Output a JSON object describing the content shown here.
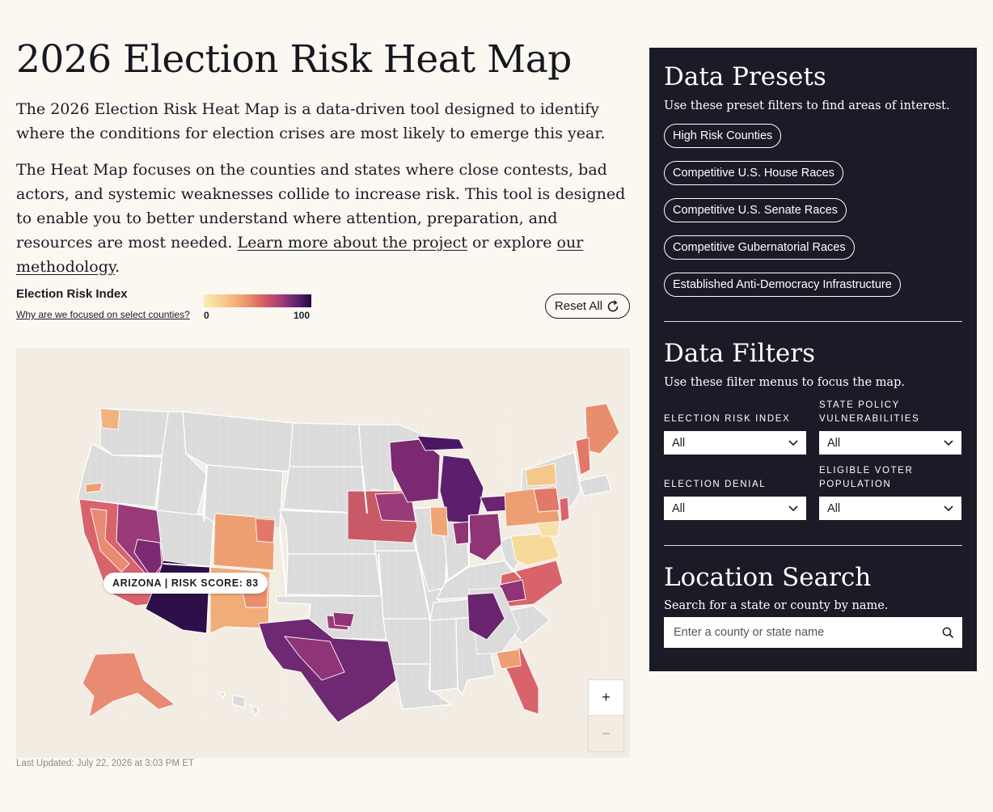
{
  "page": {
    "title": "2026 Election Risk Heat Map",
    "intro_1": "The 2026 Election Risk Heat Map is a data-driven tool designed to identify where the conditions for election crises are most likely to emerge this year.",
    "intro_2_start": "The Heat Map focuses on the counties and states where close contests, bad actors, and systemic weaknesses collide to increase risk. This tool is designed to enable you to better understand where attention, preparation, and resources are most needed. ",
    "link_project": "Learn more about the project",
    "intro_2_mid": " or explore ",
    "link_methodology": "our methodology",
    "intro_2_end": "."
  },
  "legend": {
    "title": "Election Risk Index",
    "link": "Why are we focused on select counties?",
    "min": "0",
    "max": "100",
    "colors": [
      "#fbedb5",
      "#f7c88a",
      "#ef9a6d",
      "#d95f62",
      "#a23d79",
      "#5b1f6e",
      "#1f0b3b"
    ]
  },
  "reset": {
    "label": "Reset All",
    "icon": "refresh-icon"
  },
  "map": {
    "tooltip": "ARIZONA | RISK SCORE: 83",
    "zoom_in": "+",
    "zoom_out": "−",
    "colors": {
      "background": "#f2ece3",
      "land_unscored": "#dcdbdb",
      "very_low": "#f7d99a",
      "low": "#f1a673",
      "medium": "#e37a67",
      "elevated": "#cf5a67",
      "high": "#8e3477",
      "very_high": "#5d1f6d",
      "extreme": "#2a0d47"
    },
    "states": [
      {
        "name": "Arizona",
        "risk": 83
      },
      {
        "name": "Nevada"
      },
      {
        "name": "California"
      },
      {
        "name": "Texas"
      },
      {
        "name": "Georgia"
      },
      {
        "name": "Michigan"
      },
      {
        "name": "Wisconsin"
      },
      {
        "name": "Iowa"
      },
      {
        "name": "Colorado"
      },
      {
        "name": "New Mexico"
      },
      {
        "name": "North Carolina"
      },
      {
        "name": "Pennsylvania"
      },
      {
        "name": "Florida"
      },
      {
        "name": "Maine"
      },
      {
        "name": "Alaska"
      },
      {
        "name": "Washington"
      },
      {
        "name": "Oregon"
      },
      {
        "name": "Ohio"
      },
      {
        "name": "Virginia"
      },
      {
        "name": "New Hampshire"
      }
    ]
  },
  "updated": "Last Updated: July 22, 2026 at 3:03 PM ET",
  "panel": {
    "presets_title": "Data Presets",
    "presets_sub": "Use these preset filters to find areas of interest.",
    "presets": [
      "High Risk Counties",
      "Competitive U.S. House Races",
      "Competitive U.S. Senate Races",
      "Competitive Gubernatorial Races",
      "Established Anti-Democracy Infrastructure"
    ],
    "filters_title": "Data Filters",
    "filters_sub": "Use these filter menus to focus the map.",
    "filters": [
      {
        "label": "ELECTION RISK INDEX",
        "value": "All"
      },
      {
        "label": "STATE POLICY VULNERABILITIES",
        "value": "All"
      },
      {
        "label": "ELECTION DENIAL",
        "value": "All"
      },
      {
        "label": "ELIGIBLE VOTER POPULATION",
        "value": "All"
      }
    ],
    "search_title": "Location Search",
    "search_sub": "Search for a state or county by name.",
    "search_placeholder": "Enter a county or state name",
    "search_icon": "search-icon"
  }
}
